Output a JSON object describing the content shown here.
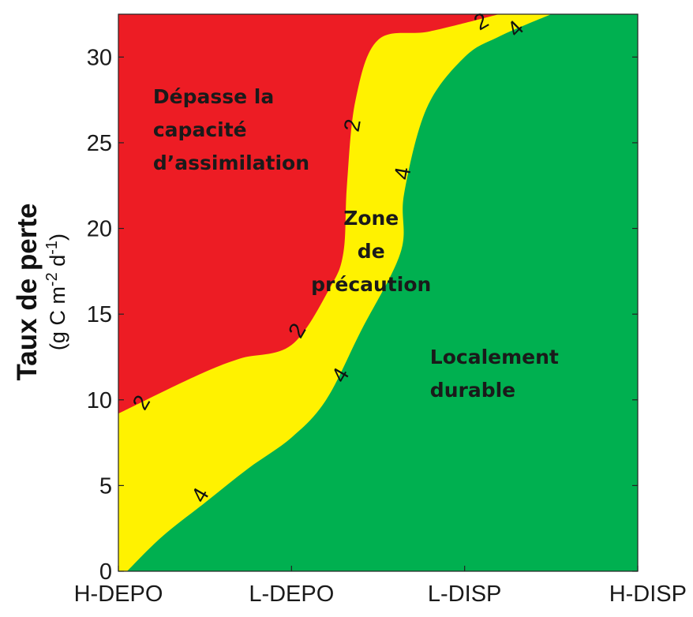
{
  "chart_data": {
    "type": "area",
    "x_categories": [
      "H-DEPO",
      "L-DEPO",
      "L-DISP",
      "H-DISP"
    ],
    "xlim": [
      0,
      3
    ],
    "ylim": [
      0,
      32.5
    ],
    "yticks": [
      0,
      5,
      10,
      15,
      20,
      25,
      30
    ],
    "ylabel": "Taux de perte",
    "ylabel_units": "(g C m-2 d-1)",
    "colors": {
      "over": "#ed1c24",
      "precaution": "#fff200",
      "sustainable": "#00b050"
    },
    "contours": [
      {
        "level": "2",
        "points": [
          [
            0,
            9.2
          ],
          [
            0.45,
            11.4
          ],
          [
            0.7,
            12.4
          ],
          [
            1.0,
            13.2
          ],
          [
            1.22,
            16.5
          ],
          [
            1.3,
            18.6
          ],
          [
            1.32,
            22.5
          ],
          [
            1.37,
            27.5
          ],
          [
            1.5,
            31.0
          ],
          [
            1.8,
            31.5
          ],
          [
            2.2,
            32.5
          ]
        ]
      },
      {
        "level": "4",
        "points": [
          [
            0.05,
            0
          ],
          [
            0.25,
            2.0
          ],
          [
            0.5,
            4.0
          ],
          [
            0.75,
            6.0
          ],
          [
            1.0,
            7.8
          ],
          [
            1.2,
            10.0
          ],
          [
            1.4,
            14.0
          ],
          [
            1.63,
            18.6
          ],
          [
            1.65,
            22.0
          ],
          [
            1.78,
            27.0
          ],
          [
            2.0,
            30.0
          ],
          [
            2.2,
            31.2
          ],
          [
            2.5,
            32.5
          ]
        ]
      }
    ],
    "contour_labels": [
      {
        "text": "2",
        "x": 0.14,
        "y": 9.8,
        "rot": -60
      },
      {
        "text": "2",
        "x": 1.04,
        "y": 14.0,
        "rot": -60
      },
      {
        "text": "2",
        "x": 1.36,
        "y": 26.0,
        "rot": -80
      },
      {
        "text": "2",
        "x": 2.1,
        "y": 32.0,
        "rot": -30
      },
      {
        "text": "4",
        "x": 0.48,
        "y": 4.4,
        "rot": -60
      },
      {
        "text": "4",
        "x": 1.29,
        "y": 11.4,
        "rot": -60
      },
      {
        "text": "4",
        "x": 1.65,
        "y": 23.2,
        "rot": -80
      },
      {
        "text": "4",
        "x": 2.3,
        "y": 31.6,
        "rot": -45
      }
    ],
    "regions": [
      {
        "name": "over",
        "lines": [
          "Dépasse la",
          "capacité",
          "d’assimilation"
        ],
        "x": 0.2,
        "y": 27.3
      },
      {
        "name": "precaution",
        "lines": [
          "Zone",
          "de",
          "précaution"
        ],
        "x": 1.46,
        "y": 20.2
      },
      {
        "name": "sustainable",
        "lines": [
          "Localement",
          "durable"
        ],
        "x": 1.8,
        "y": 12.1
      }
    ]
  }
}
